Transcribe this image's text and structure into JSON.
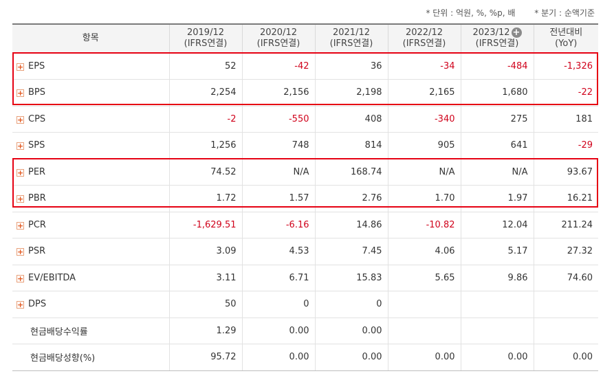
{
  "unit_note": {
    "unit": "* 단위 : 억원, %, %p, 배",
    "period": "* 분기 : 순액기준"
  },
  "header": {
    "label": "항목",
    "columns": [
      {
        "year": "2019/12",
        "basis": "(IFRS연결)"
      },
      {
        "year": "2020/12",
        "basis": "(IFRS연결)"
      },
      {
        "year": "2021/12",
        "basis": "(IFRS연결)"
      },
      {
        "year": "2022/12",
        "basis": "(IFRS연결)"
      },
      {
        "year": "2023/12",
        "basis": "(IFRS연결)"
      }
    ],
    "yoy": {
      "title": "전년대비",
      "sub": "(YoY)"
    }
  },
  "rows": [
    {
      "label": "EPS",
      "expandable": true,
      "values": [
        "52",
        "-42",
        "36",
        "-34",
        "-484",
        "-1,326"
      ]
    },
    {
      "label": "BPS",
      "expandable": true,
      "values": [
        "2,254",
        "2,156",
        "2,198",
        "2,165",
        "1,680",
        "-22"
      ]
    },
    {
      "label": "CPS",
      "expandable": true,
      "values": [
        "-2",
        "-550",
        "408",
        "-340",
        "275",
        "181"
      ]
    },
    {
      "label": "SPS",
      "expandable": true,
      "values": [
        "1,256",
        "748",
        "814",
        "905",
        "641",
        "-29"
      ]
    },
    {
      "label": "PER",
      "expandable": true,
      "values": [
        "74.52",
        "N/A",
        "168.74",
        "N/A",
        "N/A",
        "93.67"
      ]
    },
    {
      "label": "PBR",
      "expandable": true,
      "values": [
        "1.72",
        "1.57",
        "2.76",
        "1.70",
        "1.97",
        "16.21"
      ]
    },
    {
      "label": "PCR",
      "expandable": true,
      "values": [
        "-1,629.51",
        "-6.16",
        "14.86",
        "-10.82",
        "12.04",
        "211.24"
      ]
    },
    {
      "label": "PSR",
      "expandable": true,
      "values": [
        "3.09",
        "4.53",
        "7.45",
        "4.06",
        "5.17",
        "27.32"
      ]
    },
    {
      "label": "EV/EBITDA",
      "expandable": true,
      "values": [
        "3.11",
        "6.71",
        "15.83",
        "5.65",
        "9.86",
        "74.60"
      ]
    },
    {
      "label": "DPS",
      "expandable": true,
      "values": [
        "50",
        "0",
        "0",
        "",
        "",
        ""
      ]
    },
    {
      "label": "현금배당수익률",
      "expandable": false,
      "values": [
        "1.29",
        "0.00",
        "0.00",
        "",
        "",
        ""
      ]
    },
    {
      "label": "현금배당성향(%)",
      "expandable": false,
      "values": [
        "95.72",
        "0.00",
        "0.00",
        "0.00",
        "0.00",
        "0.00"
      ]
    }
  ],
  "colors": {
    "negative": "#d0021b",
    "highlight": "#e60012",
    "expand_icon": "#e2571e"
  },
  "icons": {
    "row_expand": "plus-square-icon",
    "header_add": "plus-circle-icon"
  }
}
